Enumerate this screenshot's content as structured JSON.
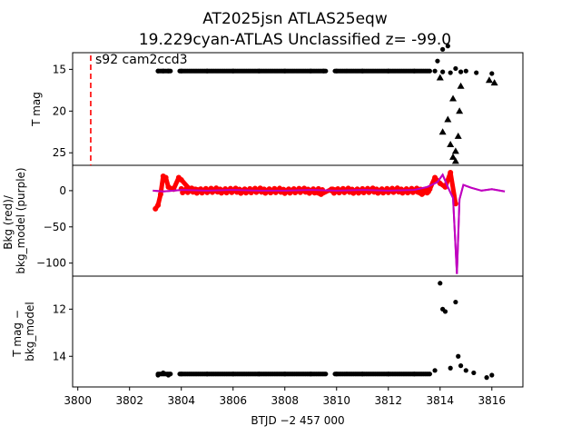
{
  "chart_data": [
    {
      "type": "scatter",
      "panel": "top",
      "ylabel": "T mag",
      "yticks": [
        15,
        20,
        25
      ],
      "ylim": [
        26.5,
        13.0
      ],
      "inverted": true,
      "annotation": "s92 cam2ccd3",
      "vline_x": 3800.5,
      "series": [
        {
          "name": "detections",
          "marker": "circle",
          "color": "#000000",
          "x": [
            3803.1,
            3803.3,
            3803.5,
            3804.0,
            3805.0,
            3806.0,
            3807.0,
            3808.0,
            3809.0,
            3809.5,
            3810.0,
            3811.0,
            3812.0,
            3813.0,
            3813.8,
            3814.1,
            3814.4,
            3814.8,
            3815.0,
            3815.4,
            3816.0,
            3813.9,
            3814.1,
            3814.3,
            3814.6
          ],
          "y": [
            15.2,
            15.2,
            15.2,
            15.2,
            15.2,
            15.2,
            15.2,
            15.2,
            15.2,
            15.2,
            15.2,
            15.2,
            15.2,
            15.2,
            15.2,
            15.3,
            15.4,
            15.3,
            15.2,
            15.4,
            15.5,
            14.0,
            12.6,
            12.2,
            14.9
          ]
        },
        {
          "name": "upper limits",
          "marker": "triangle",
          "color": "#000000",
          "x": [
            3814.0,
            3814.1,
            3814.3,
            3814.4,
            3814.5,
            3814.6,
            3814.7,
            3814.75,
            3814.8,
            3814.5,
            3814.6,
            3815.9,
            3816.1
          ],
          "y": [
            16.0,
            22.5,
            21.0,
            24.0,
            25.5,
            26.0,
            23.0,
            20.0,
            17.0,
            18.5,
            24.8,
            16.3,
            16.6
          ]
        }
      ]
    },
    {
      "type": "line",
      "panel": "middle",
      "ylabel": "Bkg (red)/ bkg_model (purple)",
      "yticks": [
        0,
        -50,
        -100
      ],
      "ylim": [
        -118,
        35
      ],
      "series": [
        {
          "name": "Bkg",
          "color": "#ff0000",
          "marker": "circle",
          "x": [
            3803.0,
            3803.1,
            3803.2,
            3803.3,
            3803.4,
            3803.5,
            3803.7,
            3803.9,
            3804.0,
            3804.3,
            3805.0,
            3806.0,
            3807.0,
            3808.0,
            3809.0,
            3809.4,
            3809.8,
            3810.5,
            3811.0,
            3812.0,
            3812.5,
            3813.0,
            3813.3,
            3813.6,
            3813.8,
            3814.0,
            3814.2,
            3814.4,
            3814.6
          ],
          "y": [
            -25,
            -20,
            -5,
            20,
            18,
            5,
            2,
            18,
            15,
            3,
            0,
            0,
            0,
            0,
            0,
            -5,
            2,
            0,
            0,
            0,
            0,
            0,
            -5,
            2,
            18,
            10,
            5,
            25,
            -18
          ]
        },
        {
          "name": "bkg_model",
          "color": "#bf00bf",
          "marker": "none",
          "x": [
            3802.9,
            3803.3,
            3803.7,
            3804.0,
            3805.0,
            3806.0,
            3807.0,
            3808.0,
            3809.0,
            3810.0,
            3811.0,
            3812.0,
            3813.0,
            3813.5,
            3813.9,
            3814.1,
            3814.3,
            3814.5,
            3814.65,
            3814.75,
            3814.9,
            3815.2,
            3815.6,
            3816.0,
            3816.5
          ],
          "y": [
            0,
            -1,
            0,
            1,
            0,
            1,
            0,
            0,
            1,
            0,
            1,
            0,
            1,
            5,
            12,
            22,
            5,
            -10,
            -115,
            -12,
            8,
            4,
            0,
            2,
            -1
          ]
        }
      ]
    },
    {
      "type": "scatter",
      "panel": "bottom",
      "ylabel": "T mag − bkg_model",
      "yticks": [
        12,
        14
      ],
      "ylim": [
        15.3,
        10.6
      ],
      "inverted": true,
      "xlabel": "BTJD −2 457 000",
      "xticks": [
        3800,
        3802,
        3804,
        3806,
        3808,
        3810,
        3812,
        3814,
        3816
      ],
      "xlim": [
        3799.8,
        3817.2
      ],
      "series": [
        {
          "name": "T mag - bkg_model",
          "color": "#000000",
          "marker": "circle",
          "x": [
            3803.1,
            3803.3,
            3803.5,
            3804.0,
            3805.0,
            3806.0,
            3807.0,
            3808.0,
            3809.0,
            3810.0,
            3811.0,
            3812.0,
            3813.0,
            3813.8,
            3814.0,
            3814.1,
            3814.2,
            3814.4,
            3814.6,
            3814.7,
            3814.8,
            3815.0,
            3815.3,
            3815.8,
            3816.0
          ],
          "y": [
            14.8,
            14.7,
            14.8,
            14.75,
            14.75,
            14.75,
            14.75,
            14.75,
            14.75,
            14.75,
            14.75,
            14.75,
            14.75,
            14.6,
            10.9,
            12.0,
            12.1,
            14.5,
            11.7,
            14.0,
            14.4,
            14.6,
            14.7,
            14.9,
            14.8
          ]
        }
      ]
    }
  ],
  "title_line1": "AT2025jsn  ATLAS25eqw",
  "title_line2": "19.229cyan-ATLAS Unclassified z= -99.0"
}
